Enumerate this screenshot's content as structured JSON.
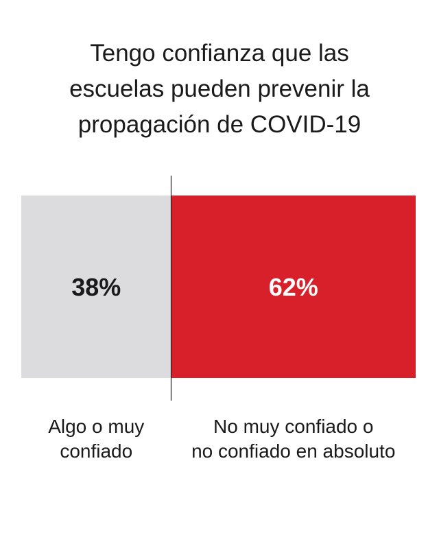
{
  "title": {
    "lines": [
      "Tengo confianza que las",
      "escuelas pueden prevenir la",
      "propagación de COVID-19"
    ]
  },
  "chart_data": {
    "type": "bar",
    "orientation": "stacked-horizontal",
    "title": "Tengo confianza que las escuelas pueden prevenir la propagación de COVID-19",
    "unit": "%",
    "categories": [
      "Algo o muy confiado",
      "No muy confiado o no confiado en absoluto"
    ],
    "values": [
      38,
      62
    ],
    "data_labels": [
      "38%",
      "62%"
    ],
    "category_label_lines": [
      [
        "Algo o muy",
        "confiado"
      ],
      [
        "No muy confiado o",
        "no confiado en absoluto"
      ]
    ],
    "colors": [
      "#dcdcde",
      "#d7202a"
    ],
    "label_colors": [
      "#1a1a1a",
      "#ffffff"
    ],
    "total": 100,
    "grid": false,
    "legend": "none"
  }
}
